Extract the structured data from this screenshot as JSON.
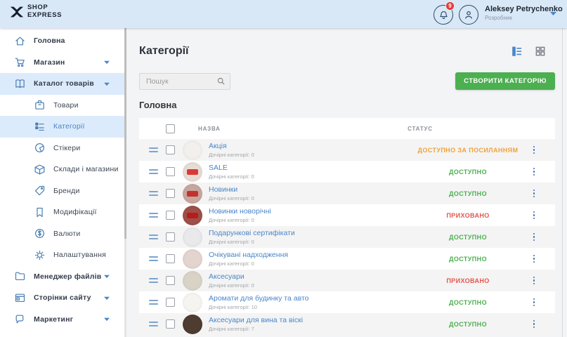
{
  "header": {
    "logo_line1": "SHOP",
    "logo_line2": "EXPRESS",
    "notification_badge": "9",
    "user": {
      "name": "Aleksey Petrychenko",
      "role": "Розробник"
    }
  },
  "sidebar": {
    "items": [
      {
        "slug": "home",
        "label": "Головна",
        "icon": "home",
        "level": "top",
        "caret": false
      },
      {
        "slug": "shop",
        "label": "Магазин",
        "icon": "cart",
        "level": "top",
        "caret": true
      },
      {
        "slug": "catalog",
        "label": "Каталог товарів",
        "icon": "book",
        "level": "top",
        "caret": true,
        "highlight": true
      },
      {
        "slug": "products",
        "label": "Товари",
        "icon": "goods",
        "level": "sub"
      },
      {
        "slug": "categories",
        "label": "Категорії",
        "icon": "categories",
        "level": "sub",
        "highlight": true,
        "selected": true
      },
      {
        "slug": "stickers",
        "label": "Стікери",
        "icon": "sticker",
        "level": "sub"
      },
      {
        "slug": "warehouses",
        "label": "Склади і магазини",
        "icon": "package",
        "level": "sub"
      },
      {
        "slug": "brands",
        "label": "Бренди",
        "icon": "tag",
        "level": "sub"
      },
      {
        "slug": "modifications",
        "label": "Модифікації",
        "icon": "bookmark",
        "level": "sub"
      },
      {
        "slug": "currencies",
        "label": "Валюти",
        "icon": "dollar",
        "level": "sub"
      },
      {
        "slug": "settings",
        "label": "Налаштування",
        "icon": "gear",
        "level": "sub"
      },
      {
        "slug": "file-manager",
        "label": "Менеджер файлів",
        "icon": "folder",
        "level": "top",
        "caret": true
      },
      {
        "slug": "site-pages",
        "label": "Сторінки сайту",
        "icon": "pages",
        "level": "top",
        "caret": true
      },
      {
        "slug": "marketing",
        "label": "Маркетинг",
        "icon": "bubble",
        "level": "top",
        "caret": true
      }
    ]
  },
  "main": {
    "title": "Категорії",
    "search_placeholder": "Пошук",
    "create_button": "СТВОРИТИ КАТЕГОРІЮ",
    "section_title": "Головна",
    "table": {
      "columns": {
        "name": "НАЗВА",
        "status": "СТАТУС"
      },
      "rows": [
        {
          "name": "Акція",
          "subtitle": "Дочірні категорії: 0",
          "status": "ДОСТУПНО ЗА ПОСИЛАННЯМ",
          "status_type": "link",
          "avatar": {
            "bg": "#f3efec",
            "chip": null
          }
        },
        {
          "name": "SALE",
          "subtitle": "Дочірні категорії: 0",
          "status": "ДОСТУПНО",
          "status_type": "available",
          "avatar": {
            "bg": "#e7dcd4",
            "chip": "#d93a36"
          }
        },
        {
          "name": "Новинки",
          "subtitle": "Дочірні категорії: 0",
          "status": "ДОСТУПНО",
          "status_type": "available",
          "avatar": {
            "bg": "#c7a69d",
            "chip": "#c4302e"
          }
        },
        {
          "name": "Новинки новорічні",
          "subtitle": "Дочірні категорії: 0",
          "status": "ПРИХОВАНО",
          "status_type": "hidden",
          "avatar": {
            "bg": "#9d5048",
            "chip": "#b71c1c"
          }
        },
        {
          "name": "Подарункові сертифікати",
          "subtitle": "Дочірні категорії: 0",
          "status": "ДОСТУПНО",
          "status_type": "available",
          "avatar": {
            "bg": "#e9e9ec",
            "chip": null
          }
        },
        {
          "name": "Очікувані надходження",
          "subtitle": "Дочірні категорії: 0",
          "status": "ДОСТУПНО",
          "status_type": "available",
          "avatar": {
            "bg": "#e3d4cf",
            "chip": null
          }
        },
        {
          "name": "Аксесуари",
          "subtitle": "Дочірні категорії: 0",
          "status": "ПРИХОВАНО",
          "status_type": "hidden",
          "avatar": {
            "bg": "#d9d3c7",
            "chip": null
          }
        },
        {
          "name": "Аромати для будинку та авто",
          "subtitle": "Дочірні категорії: 10",
          "status": "ДОСТУПНО",
          "status_type": "available",
          "avatar": {
            "bg": "#f6f4f1",
            "chip": null
          }
        },
        {
          "name": "Аксесуари для вина та віскі",
          "subtitle": "Дочірні категорії: 7",
          "status": "ДОСТУПНО",
          "status_type": "available",
          "avatar": {
            "bg": "#4e3c30",
            "chip": null
          }
        }
      ]
    }
  },
  "colors": {
    "topbar_bg": "#d9e8f6",
    "accent_blue": "#4a86c8",
    "icon_blue": "#4a7fb5",
    "button_green": "#4caf50",
    "badge_red": "#e53935",
    "status": {
      "available": "#4caf50",
      "hidden": "#e2574c",
      "link": "#f0a23c"
    }
  }
}
